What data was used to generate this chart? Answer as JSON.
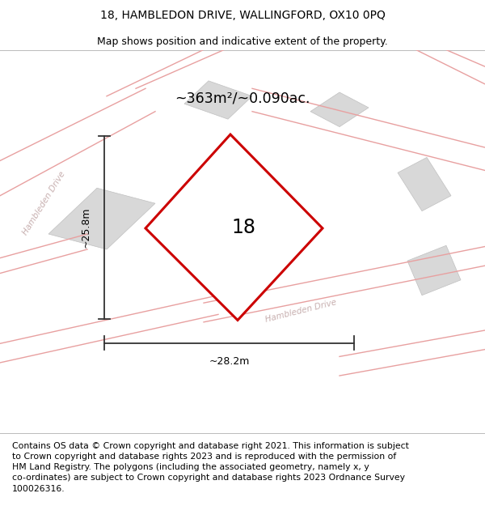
{
  "title": "18, HAMBLEDON DRIVE, WALLINGFORD, OX10 0PQ",
  "subtitle": "Map shows position and indicative extent of the property.",
  "title_fontsize": 10,
  "subtitle_fontsize": 9,
  "footer_text": "Contains OS data © Crown copyright and database right 2021. This information is subject\nto Crown copyright and database rights 2023 and is reproduced with the permission of\nHM Land Registry. The polygons (including the associated geometry, namely x, y\nco-ordinates) are subject to Crown copyright and database rights 2023 Ordnance Survey\n100026316.",
  "footer_fontsize": 7.8,
  "map_bg": "#f7f7f7",
  "area_label": "~363m²/~0.090ac.",
  "house_number": "18",
  "width_label": "~28.2m",
  "height_label": "~25.8m",
  "plot_color": "#cc0000",
  "plot_fill": "white",
  "road_color": "#e8a0a0",
  "building_color": "#d8d8d8",
  "building_edge": "#c0c0c0",
  "dim_color": "#333333"
}
